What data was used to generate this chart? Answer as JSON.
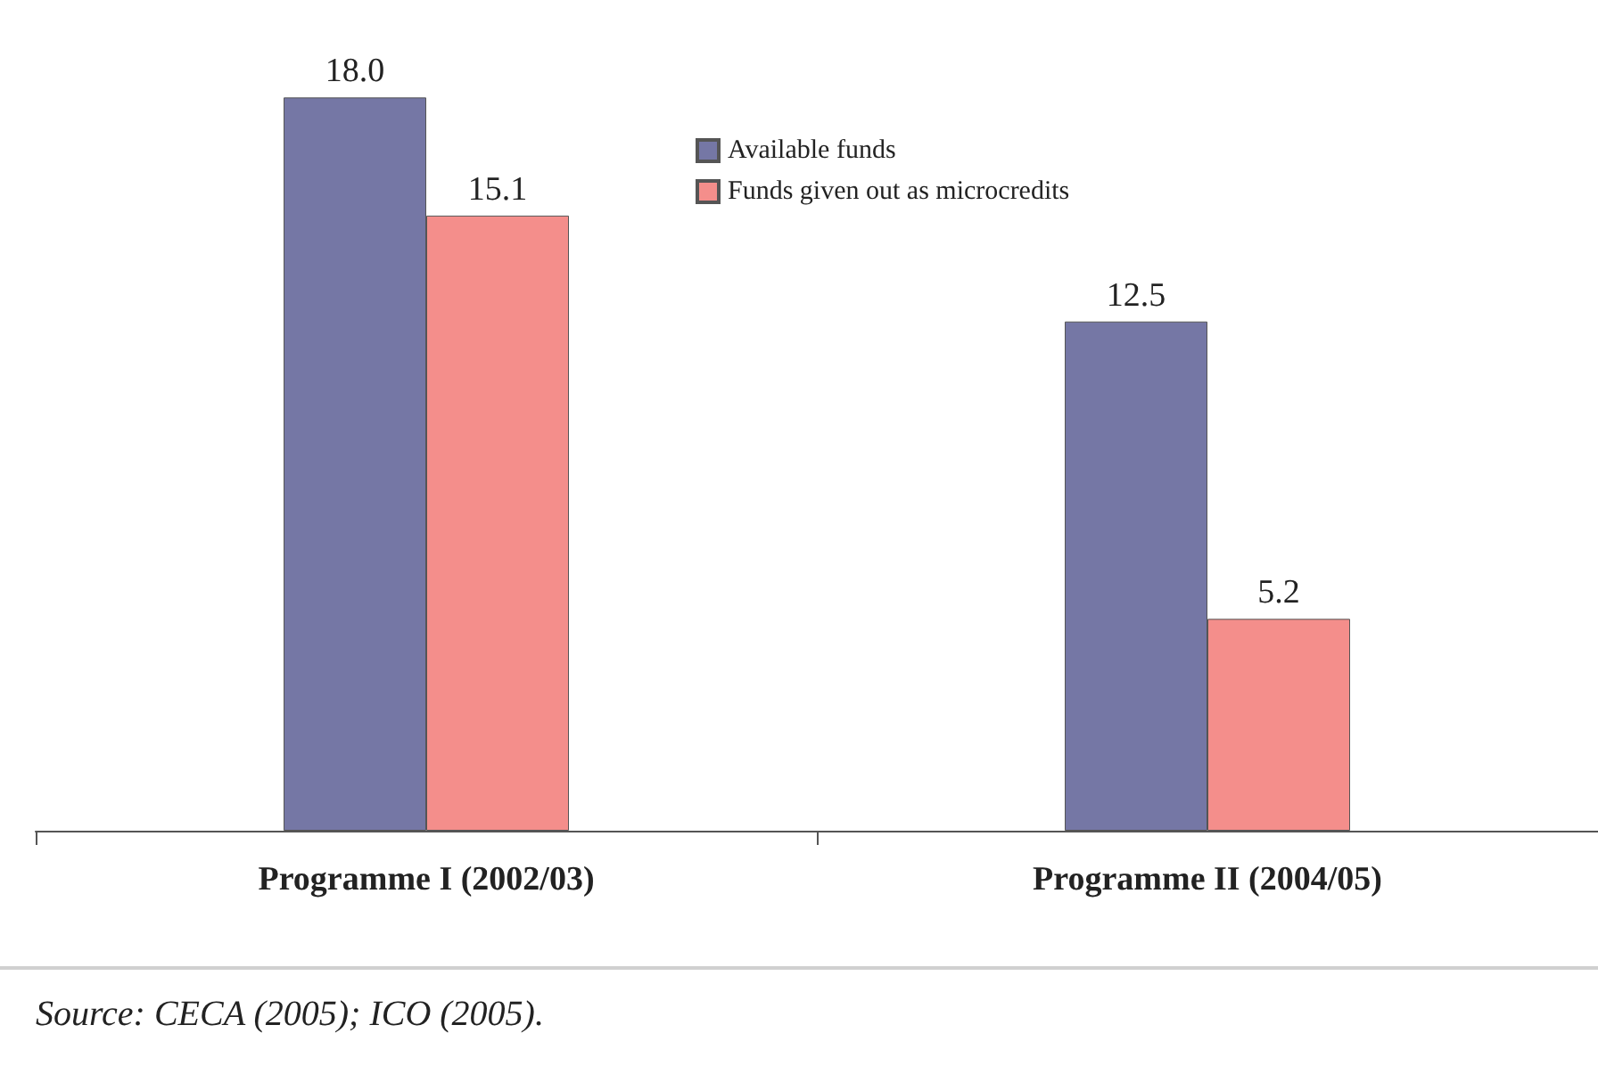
{
  "chart_data": {
    "type": "bar",
    "categories": [
      "Programme I (2002/03)",
      "Programme II (2004/05)"
    ],
    "series": [
      {
        "name": "Available funds",
        "color": "#7577a5",
        "values": [
          18.0,
          12.5
        ],
        "value_labels": [
          "18.0",
          "12.5"
        ]
      },
      {
        "name": "Funds given out as microcredits",
        "color": "#f48e8b",
        "values": [
          15.1,
          5.2
        ],
        "value_labels": [
          "15.1",
          "5.2"
        ]
      }
    ],
    "tick_labels": "x",
    "grid": false,
    "legend": "top",
    "annotations": [
      "Source: CECA (2005); ICO (2005)."
    ]
  }
}
